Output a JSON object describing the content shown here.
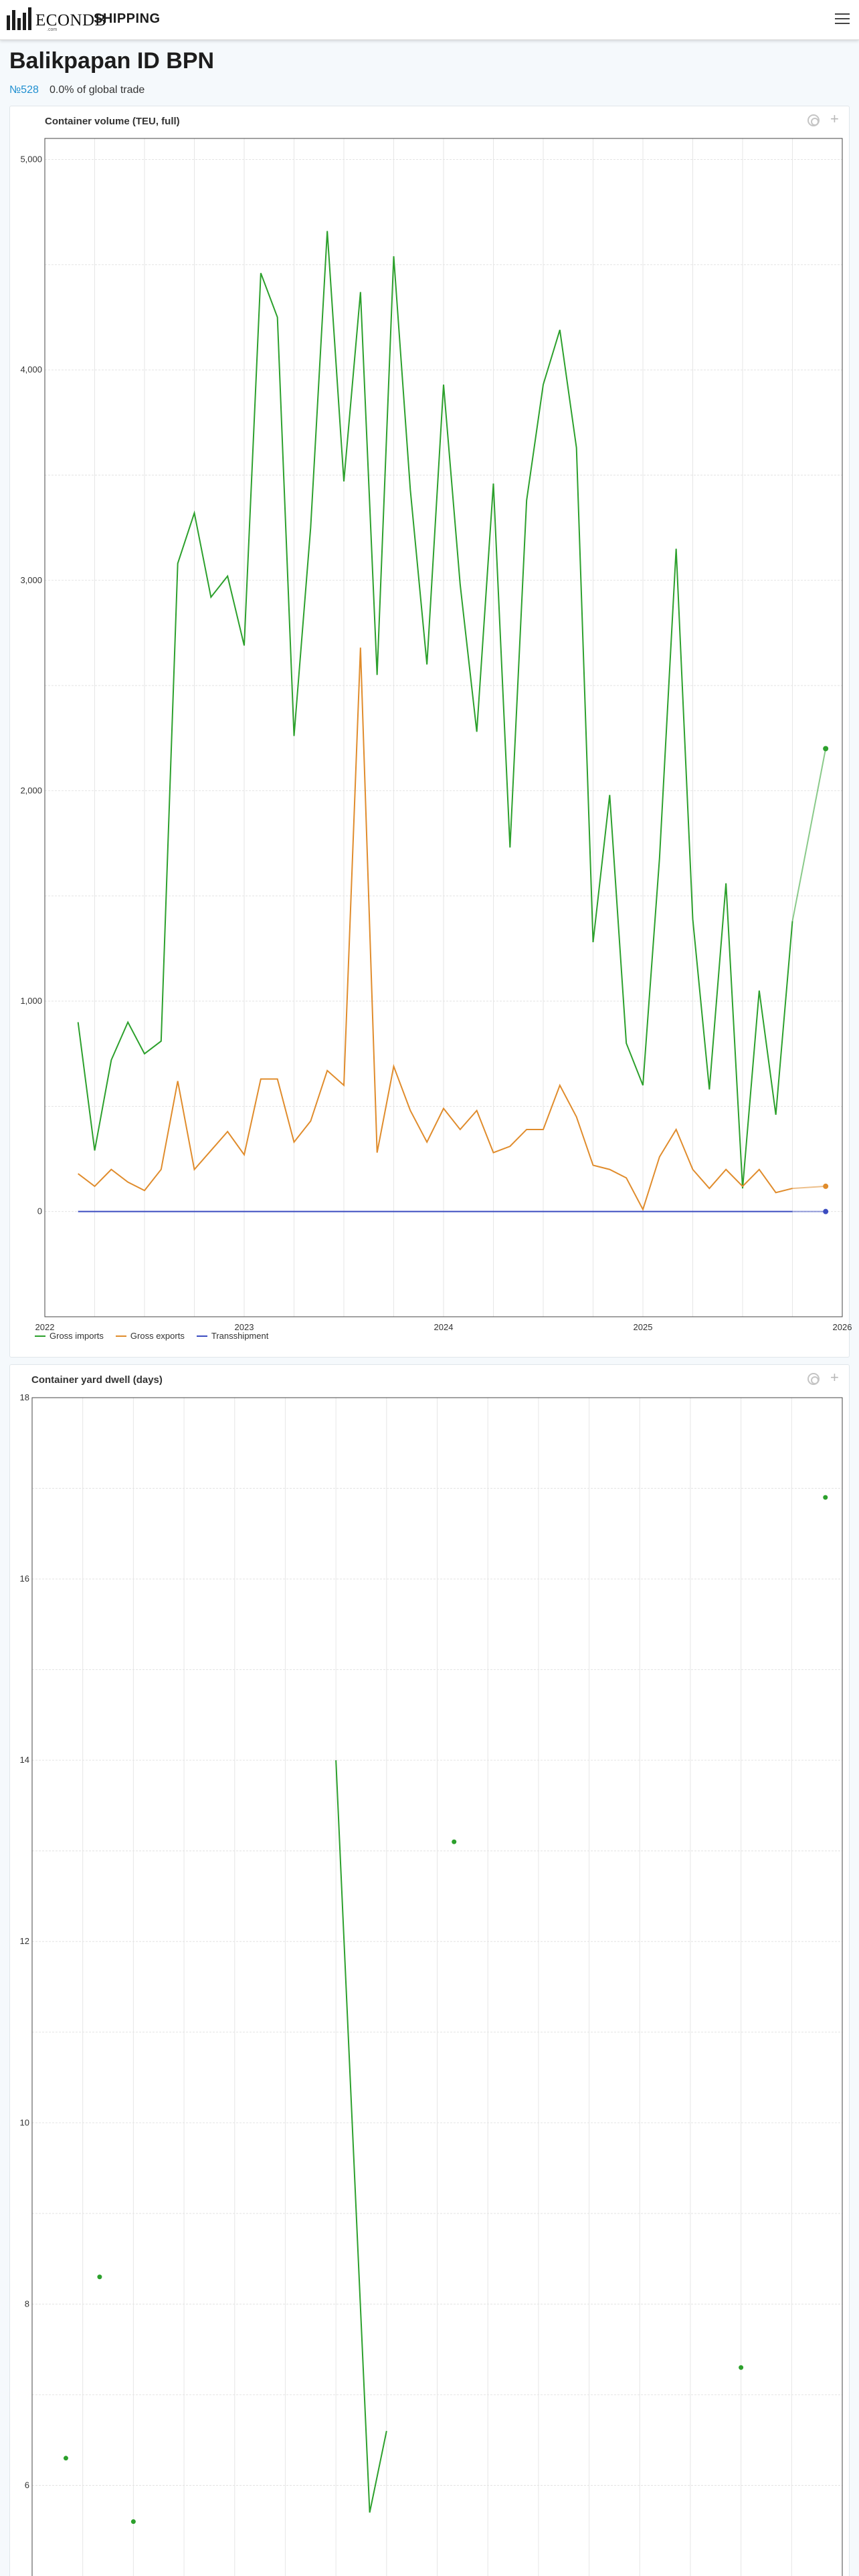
{
  "header": {
    "brand": "ECONDB",
    "brand_sub": ".com",
    "section": "SHIPPING"
  },
  "port": {
    "title": "Balikpapan  ID BPN",
    "rank": "№528",
    "share": "0.0% of global trade"
  },
  "chart_data": [
    {
      "type": "line",
      "title": "Container volume (TEU, full)",
      "xlim": [
        "2022-01-01",
        "2026-01-01"
      ],
      "ylim": [
        -500,
        5100
      ],
      "x_ticks": [
        "2022",
        "2023",
        "2024",
        "2025",
        "2026"
      ],
      "y_ticks": [
        0,
        1000,
        2000,
        3000,
        4000,
        5000
      ],
      "y_tick_labels": [
        "0",
        "1,000",
        "2,000",
        "3,000",
        "4,000",
        "5,000"
      ],
      "grid": true,
      "legend_position": "bottom-left",
      "x": [
        "2022-03",
        "2022-04",
        "2022-05",
        "2022-06",
        "2022-07",
        "2022-08",
        "2022-09",
        "2022-10",
        "2022-11",
        "2022-12",
        "2023-01",
        "2023-02",
        "2023-03",
        "2023-04",
        "2023-05",
        "2023-06",
        "2023-07",
        "2023-08",
        "2023-09",
        "2023-10",
        "2023-11",
        "2023-12",
        "2024-01",
        "2024-02",
        "2024-03",
        "2024-04",
        "2024-05",
        "2024-06",
        "2024-07",
        "2024-08",
        "2024-09",
        "2024-10",
        "2024-11",
        "2024-12",
        "2025-01",
        "2025-02",
        "2025-03",
        "2025-04",
        "2025-05",
        "2025-06",
        "2025-07",
        "2025-08",
        "2025-09",
        "2025-10",
        "2025-11",
        "2025-12"
      ],
      "series": [
        {
          "name": "Gross imports",
          "color": "#2ca02c",
          "values": [
            900,
            290,
            720,
            900,
            750,
            810,
            3080,
            3320,
            2920,
            3020,
            2690,
            4460,
            4250,
            2260,
            3250,
            4660,
            3470,
            4370,
            2550,
            4540,
            3430,
            2600,
            3930,
            2980,
            2280,
            3460,
            1730,
            3380,
            3930,
            4190,
            3630,
            1280,
            1980,
            800,
            600,
            1680,
            3150,
            1390,
            580,
            1560,
            110,
            1050,
            460,
            1380,
            null,
            2200
          ]
        },
        {
          "name": "Gross exports",
          "color": "#e08c2c",
          "values": [
            180,
            120,
            200,
            140,
            100,
            200,
            620,
            200,
            290,
            380,
            270,
            630,
            630,
            330,
            430,
            670,
            600,
            2680,
            280,
            690,
            480,
            330,
            490,
            390,
            480,
            280,
            310,
            390,
            390,
            600,
            450,
            220,
            200,
            160,
            10,
            260,
            390,
            200,
            110,
            200,
            120,
            200,
            90,
            110,
            null,
            120
          ]
        },
        {
          "name": "Transshipment",
          "color": "#3b4cc0",
          "values": [
            0,
            0,
            0,
            0,
            0,
            0,
            0,
            0,
            0,
            0,
            0,
            0,
            0,
            0,
            0,
            0,
            0,
            0,
            0,
            0,
            0,
            0,
            0,
            0,
            0,
            0,
            0,
            0,
            0,
            0,
            0,
            0,
            0,
            0,
            0,
            0,
            0,
            0,
            0,
            0,
            0,
            0,
            0,
            0,
            null,
            0
          ]
        }
      ]
    },
    {
      "type": "line",
      "title": "Container yard dwell (days)",
      "ylim": [
        5,
        18
      ],
      "y_ticks": [
        6,
        8,
        10,
        12,
        14,
        16,
        18
      ],
      "grid": true,
      "x": [
        "2022-03",
        "2022-05",
        "2022-07",
        "2023-07",
        "2023-09",
        "2023-10",
        "2024-02",
        "2025-07",
        "2025-12"
      ],
      "series": [
        {
          "name": "Gross imports",
          "color": "#2ca02c",
          "values": [
            6.3,
            8.3,
            5.6,
            14.0,
            5.7,
            6.6,
            13.1,
            7.3,
            16.9
          ],
          "segments": [
            [
              3,
              4,
              5
            ]
          ]
        }
      ]
    }
  ]
}
